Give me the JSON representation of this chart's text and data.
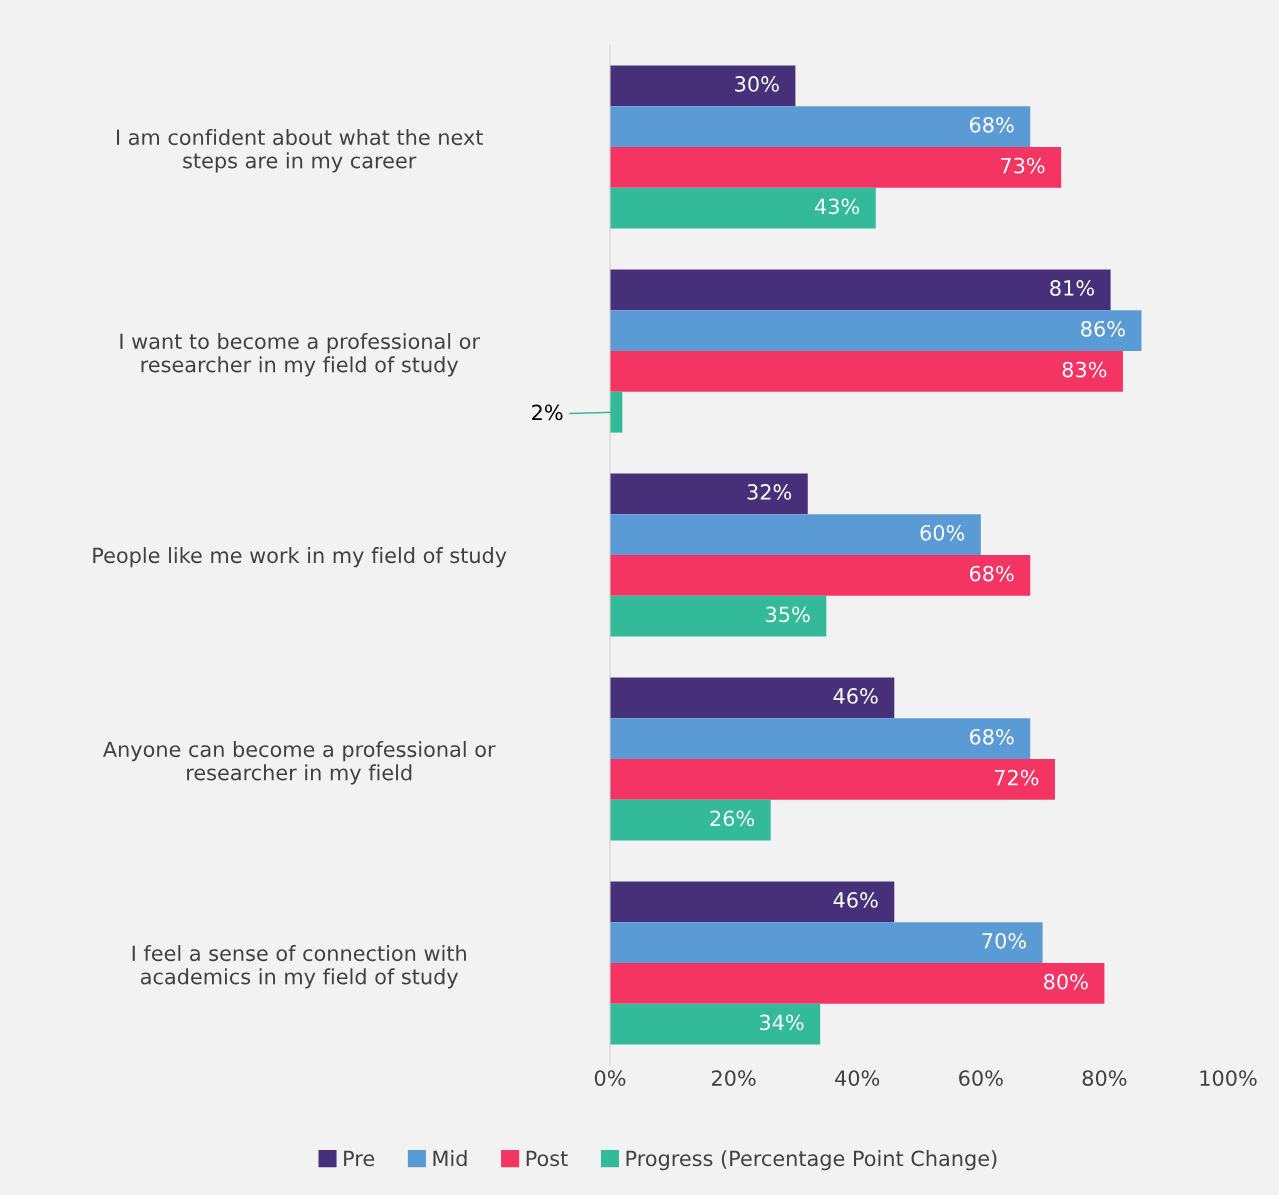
{
  "chart_data": {
    "type": "bar",
    "orientation": "horizontal",
    "categories": [
      "I am confident about what the next\nsteps are in my career",
      "I want to become a professional or\nresearcher in my field of study",
      "People like me work in my field of study",
      "Anyone can become a professional or\nresearcher in my field",
      "I feel a sense of connection with\nacademics in my field of study"
    ],
    "series": [
      {
        "name": "Pre",
        "color": "#46307a",
        "values": [
          30,
          81,
          32,
          46,
          46
        ],
        "value_labels": [
          "30%",
          "81%",
          "32%",
          "46%",
          "46%"
        ]
      },
      {
        "name": "Mid",
        "color": "#5b9bd5",
        "values": [
          68,
          86,
          60,
          68,
          70
        ],
        "value_labels": [
          "68%",
          "86%",
          "60%",
          "68%",
          "70%"
        ]
      },
      {
        "name": "Post",
        "color": "#f43563",
        "values": [
          73,
          83,
          68,
          72,
          80
        ],
        "value_labels": [
          "73%",
          "83%",
          "68%",
          "72%",
          "80%"
        ]
      },
      {
        "name": "Progress (Percentage Point Change)",
        "color": "#33bb99",
        "values": [
          43,
          2,
          35,
          26,
          34
        ],
        "value_labels": [
          "43%",
          "2%",
          "35%",
          "26%",
          "34%"
        ]
      }
    ],
    "xlim": [
      0,
      100
    ],
    "xticks": [
      {
        "value": 0,
        "label": "0%"
      },
      {
        "value": 20,
        "label": "20%"
      },
      {
        "value": 40,
        "label": "40%"
      },
      {
        "value": 60,
        "label": "60%"
      },
      {
        "value": 80,
        "label": "80%"
      },
      {
        "value": 100,
        "label": "100%"
      }
    ],
    "grid": false,
    "legend": "bottom"
  }
}
